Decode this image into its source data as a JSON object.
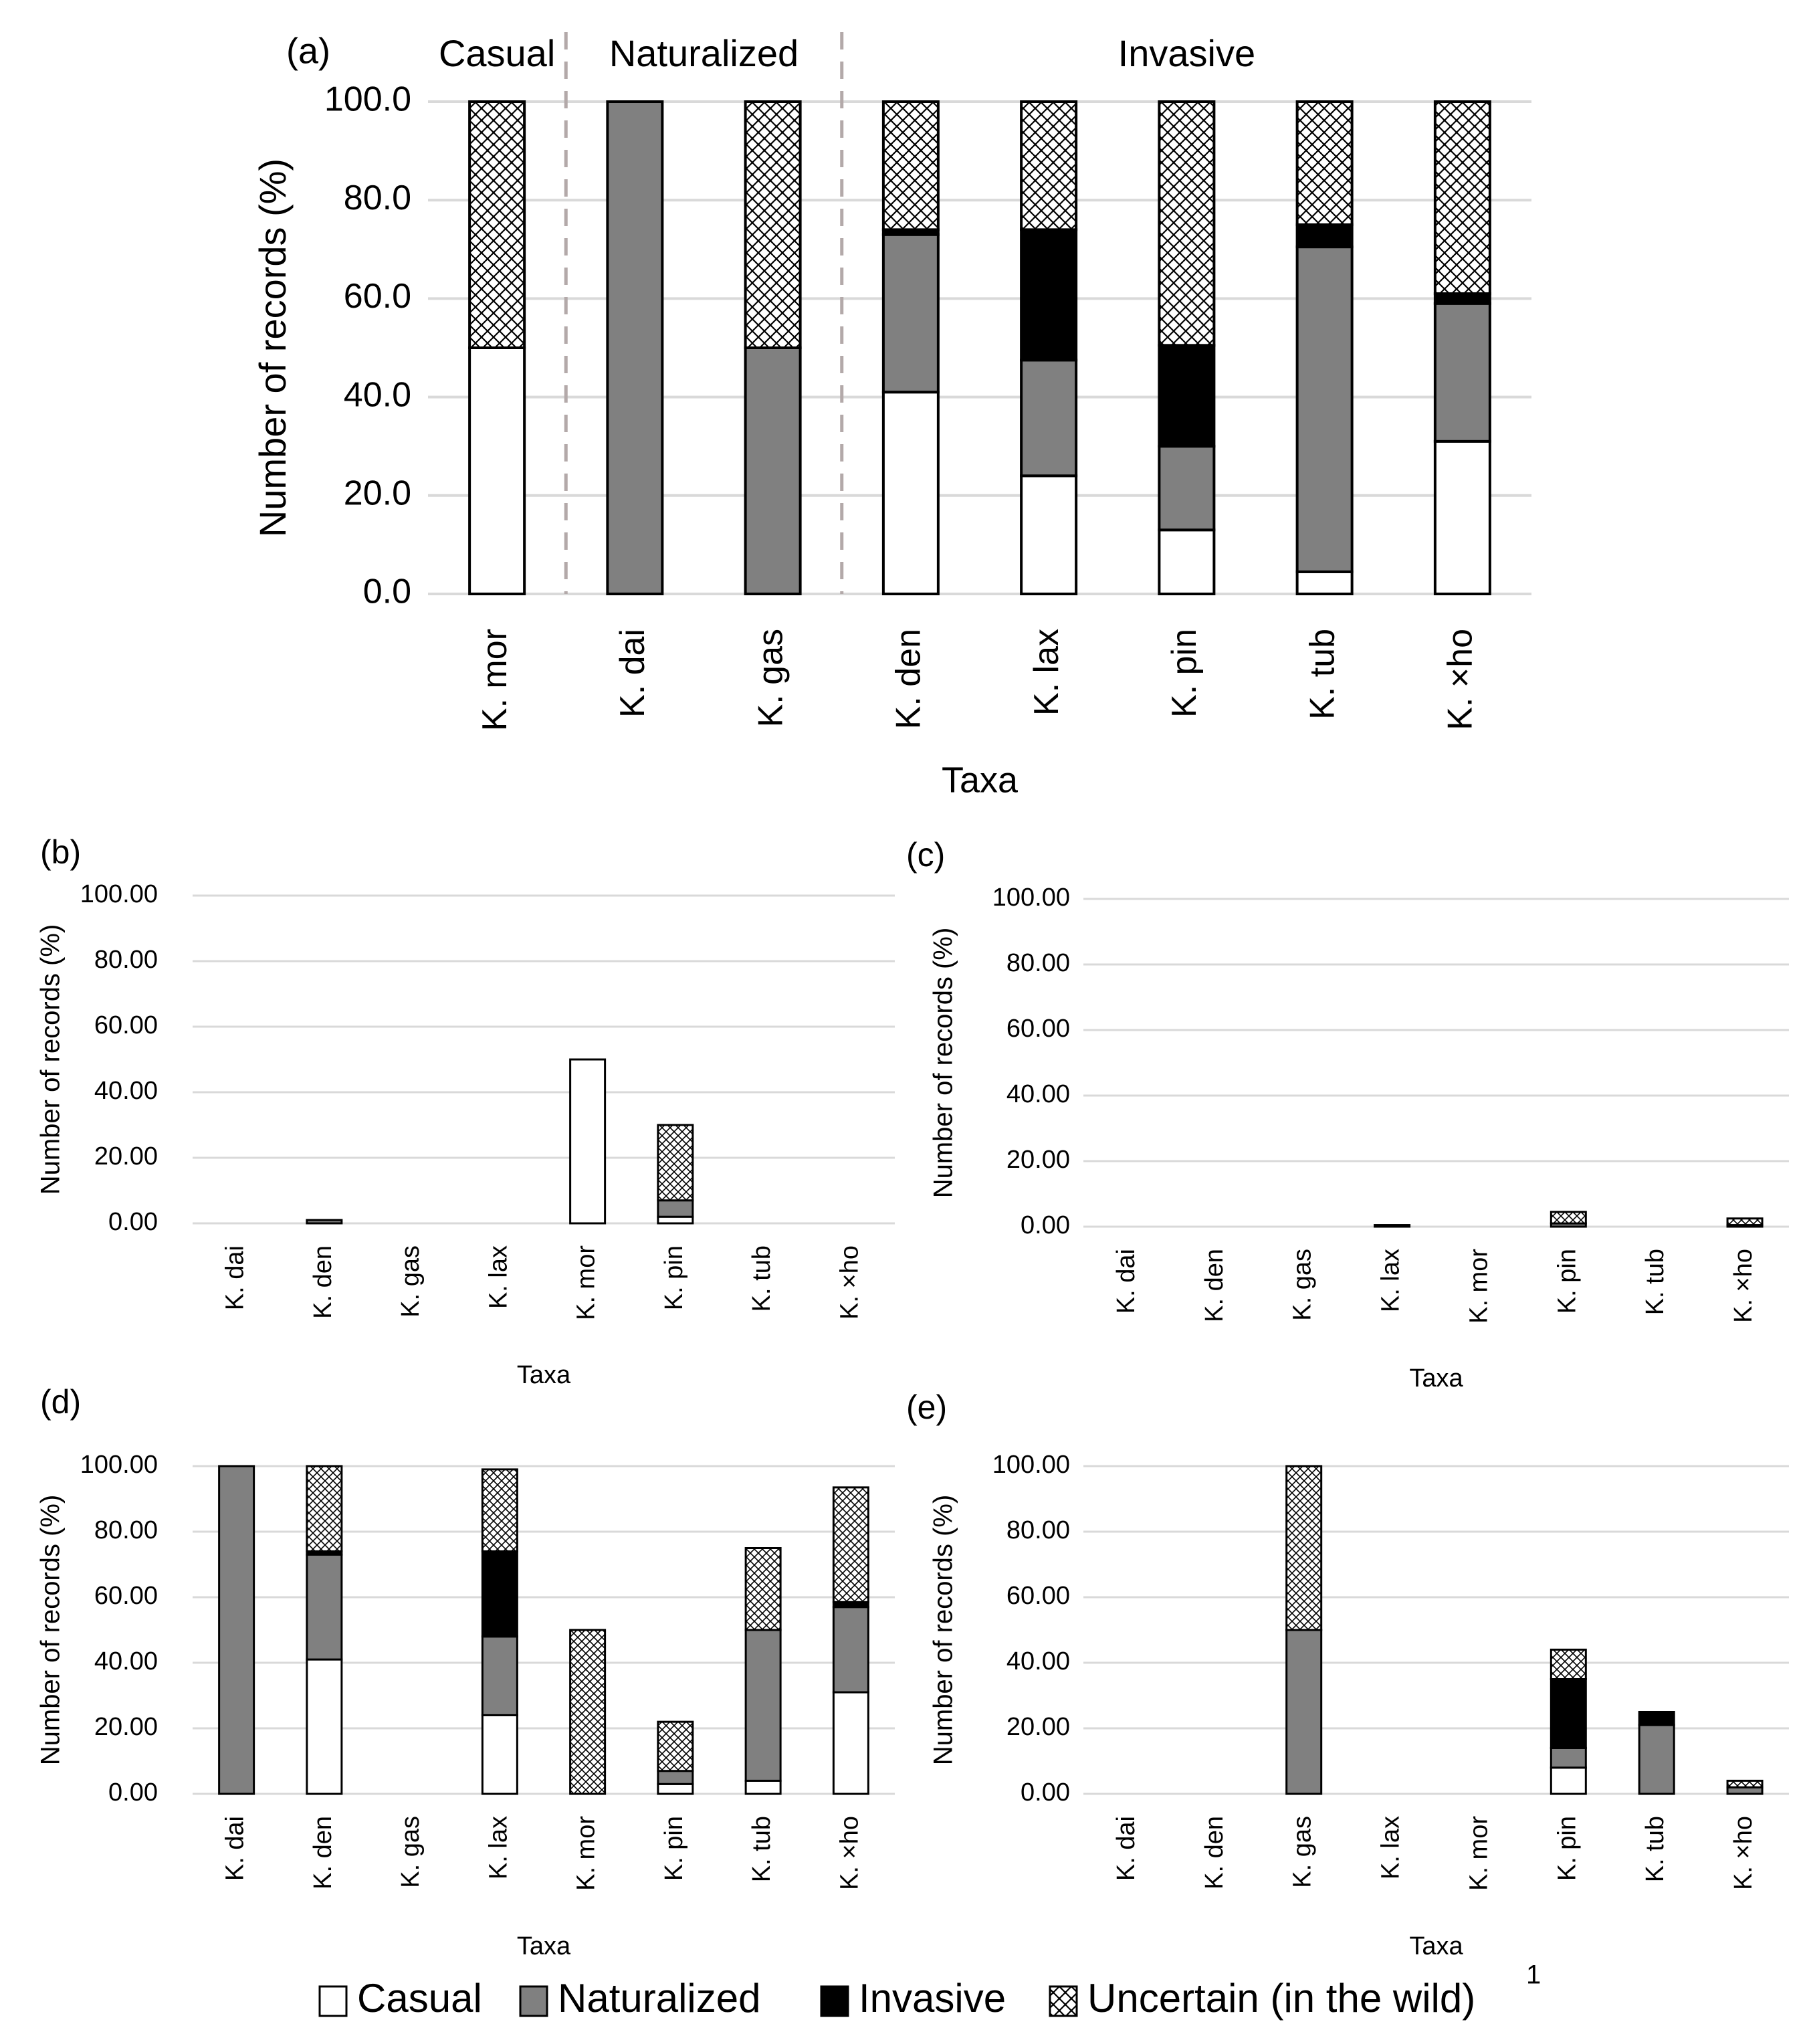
{
  "figure": {
    "legend": {
      "items": [
        {
          "key": "casual",
          "label": "Casual"
        },
        {
          "key": "naturalized",
          "label": "Naturalized"
        },
        {
          "key": "invasive",
          "label": "Invasive"
        },
        {
          "key": "uncertain",
          "label": "Uncertain (in the wild)"
        }
      ],
      "footnote_mark": "1"
    },
    "colors": {
      "casual": "#ffffff",
      "naturalized": "#808080",
      "invasive": "#000000",
      "uncertain_pattern": "crosshatch",
      "gridline": "#d9d9d9",
      "divider": "#b3a9a9"
    }
  },
  "chart_data": [
    {
      "panel_label": "(a)",
      "type": "bar",
      "stacked": true,
      "title": "",
      "xlabel": "Taxa",
      "ylabel": "Number of records (%)",
      "ylim": [
        0,
        100
      ],
      "yticks": [
        "0.0",
        "20.0",
        "40.0",
        "60.0",
        "80.0",
        "100.0"
      ],
      "groups": [
        {
          "label": "Casual",
          "start": 0,
          "end": 0
        },
        {
          "label": "Naturalized",
          "start": 1,
          "end": 2
        },
        {
          "label": "Invasive",
          "start": 3,
          "end": 7
        }
      ],
      "categories": [
        "K. mor",
        "K. dai",
        "K. gas",
        "K. den",
        "K. lax",
        "K. pin",
        "K. tub",
        "K. ×ho"
      ],
      "series": [
        {
          "name": "Casual",
          "values": [
            50,
            0,
            0,
            41,
            24,
            13,
            4.5,
            31
          ]
        },
        {
          "name": "Naturalized",
          "values": [
            0,
            100,
            50,
            32,
            23.5,
            17,
            66,
            28
          ]
        },
        {
          "name": "Invasive",
          "values": [
            0,
            0,
            0,
            1,
            26.5,
            20.5,
            4.5,
            2
          ]
        },
        {
          "name": "Uncertain (in the wild)",
          "values": [
            50,
            0,
            50,
            26,
            26,
            49.5,
            25,
            39
          ]
        }
      ]
    },
    {
      "panel_label": "(b)",
      "type": "bar",
      "stacked": true,
      "title": "",
      "xlabel": "Taxa",
      "ylabel": "Number of records (%)",
      "ylim": [
        0,
        100
      ],
      "yticks": [
        "0.00",
        "20.00",
        "40.00",
        "60.00",
        "80.00",
        "100.00"
      ],
      "categories": [
        "K. dai",
        "K. den",
        "K. gas",
        "K. lax",
        "K. mor",
        "K. pin",
        "K. tub",
        "K. ×ho"
      ],
      "series": [
        {
          "name": "Casual",
          "values": [
            0,
            0,
            0,
            0,
            50,
            2,
            0,
            0
          ]
        },
        {
          "name": "Naturalized",
          "values": [
            0,
            1,
            0,
            0,
            0,
            5,
            0,
            0
          ]
        },
        {
          "name": "Invasive",
          "values": [
            0,
            0,
            0,
            0,
            0,
            0,
            0,
            0
          ]
        },
        {
          "name": "Uncertain (in the wild)",
          "values": [
            0,
            0,
            0,
            0,
            0,
            23,
            0,
            0
          ]
        }
      ]
    },
    {
      "panel_label": "(c)",
      "type": "bar",
      "stacked": true,
      "title": "",
      "xlabel": "Taxa",
      "ylabel": "Number of records (%)",
      "ylim": [
        0,
        100
      ],
      "yticks": [
        "0.00",
        "20.00",
        "40.00",
        "60.00",
        "80.00",
        "100.00"
      ],
      "categories": [
        "K. dai",
        "K. den",
        "K. gas",
        "K. lax",
        "K. mor",
        "K. pin",
        "K. tub",
        "K. ×ho"
      ],
      "series": [
        {
          "name": "Casual",
          "values": [
            0,
            0,
            0,
            0,
            0,
            0,
            0,
            0
          ]
        },
        {
          "name": "Naturalized",
          "values": [
            0,
            0,
            0,
            0.5,
            0,
            1,
            0,
            0.5
          ]
        },
        {
          "name": "Invasive",
          "values": [
            0,
            0,
            0,
            0,
            0,
            0,
            0,
            0
          ]
        },
        {
          "name": "Uncertain (in the wild)",
          "values": [
            0,
            0,
            0,
            0,
            0,
            3.5,
            0,
            2
          ]
        }
      ]
    },
    {
      "panel_label": "(d)",
      "type": "bar",
      "stacked": true,
      "title": "",
      "xlabel": "Taxa",
      "ylabel": "Number of records (%)",
      "ylim": [
        0,
        100
      ],
      "yticks": [
        "0.00",
        "20.00",
        "40.00",
        "60.00",
        "80.00",
        "100.00"
      ],
      "categories": [
        "K. dai",
        "K. den",
        "K. gas",
        "K. lax",
        "K. mor",
        "K. pin",
        "K. tub",
        "K. ×ho"
      ],
      "series": [
        {
          "name": "Casual",
          "values": [
            0,
            41,
            0,
            24,
            0,
            3,
            4,
            31
          ]
        },
        {
          "name": "Naturalized",
          "values": [
            100,
            32,
            0,
            24,
            0,
            4,
            46,
            26
          ]
        },
        {
          "name": "Invasive",
          "values": [
            0,
            1,
            0,
            26,
            0,
            0,
            0,
            1.5
          ]
        },
        {
          "name": "Uncertain (in the wild)",
          "values": [
            0,
            26,
            0,
            25,
            50,
            15,
            25,
            35
          ]
        }
      ]
    },
    {
      "panel_label": "(e)",
      "type": "bar",
      "stacked": true,
      "title": "",
      "xlabel": "Taxa",
      "ylabel": "Number of records (%)",
      "ylim": [
        0,
        100
      ],
      "yticks": [
        "0.00",
        "20.00",
        "40.00",
        "60.00",
        "80.00",
        "100.00"
      ],
      "categories": [
        "K. dai",
        "K. den",
        "K. gas",
        "K. lax",
        "K. mor",
        "K. pin",
        "K. tub",
        "K. ×ho"
      ],
      "series": [
        {
          "name": "Casual",
          "values": [
            0,
            0,
            0,
            0,
            0,
            8,
            0,
            0
          ]
        },
        {
          "name": "Naturalized",
          "values": [
            0,
            0,
            50,
            0,
            0,
            6,
            21,
            2
          ]
        },
        {
          "name": "Invasive",
          "values": [
            0,
            0,
            0,
            0,
            0,
            21,
            4,
            0
          ]
        },
        {
          "name": "Uncertain (in the wild)",
          "values": [
            0,
            0,
            50,
            0,
            0,
            9,
            0,
            2
          ]
        }
      ]
    }
  ]
}
